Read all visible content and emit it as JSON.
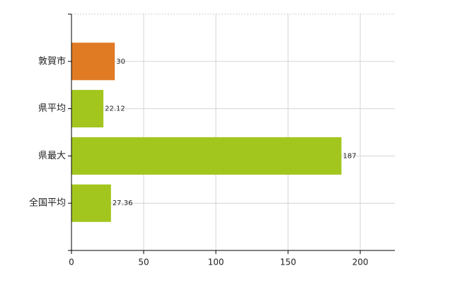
{
  "chart_data": {
    "type": "hbar",
    "categories": [
      "敦賀市",
      "県平均",
      "県最大",
      "全国平均"
    ],
    "values": [
      30,
      22.12,
      187,
      27.36
    ],
    "colors": [
      "#e07b24",
      "#a3c61e",
      "#a3c61e",
      "#a3c61e"
    ],
    "xlim": [
      0,
      224
    ],
    "xticks": [
      0,
      50,
      100,
      150,
      200
    ],
    "grid": true
  }
}
